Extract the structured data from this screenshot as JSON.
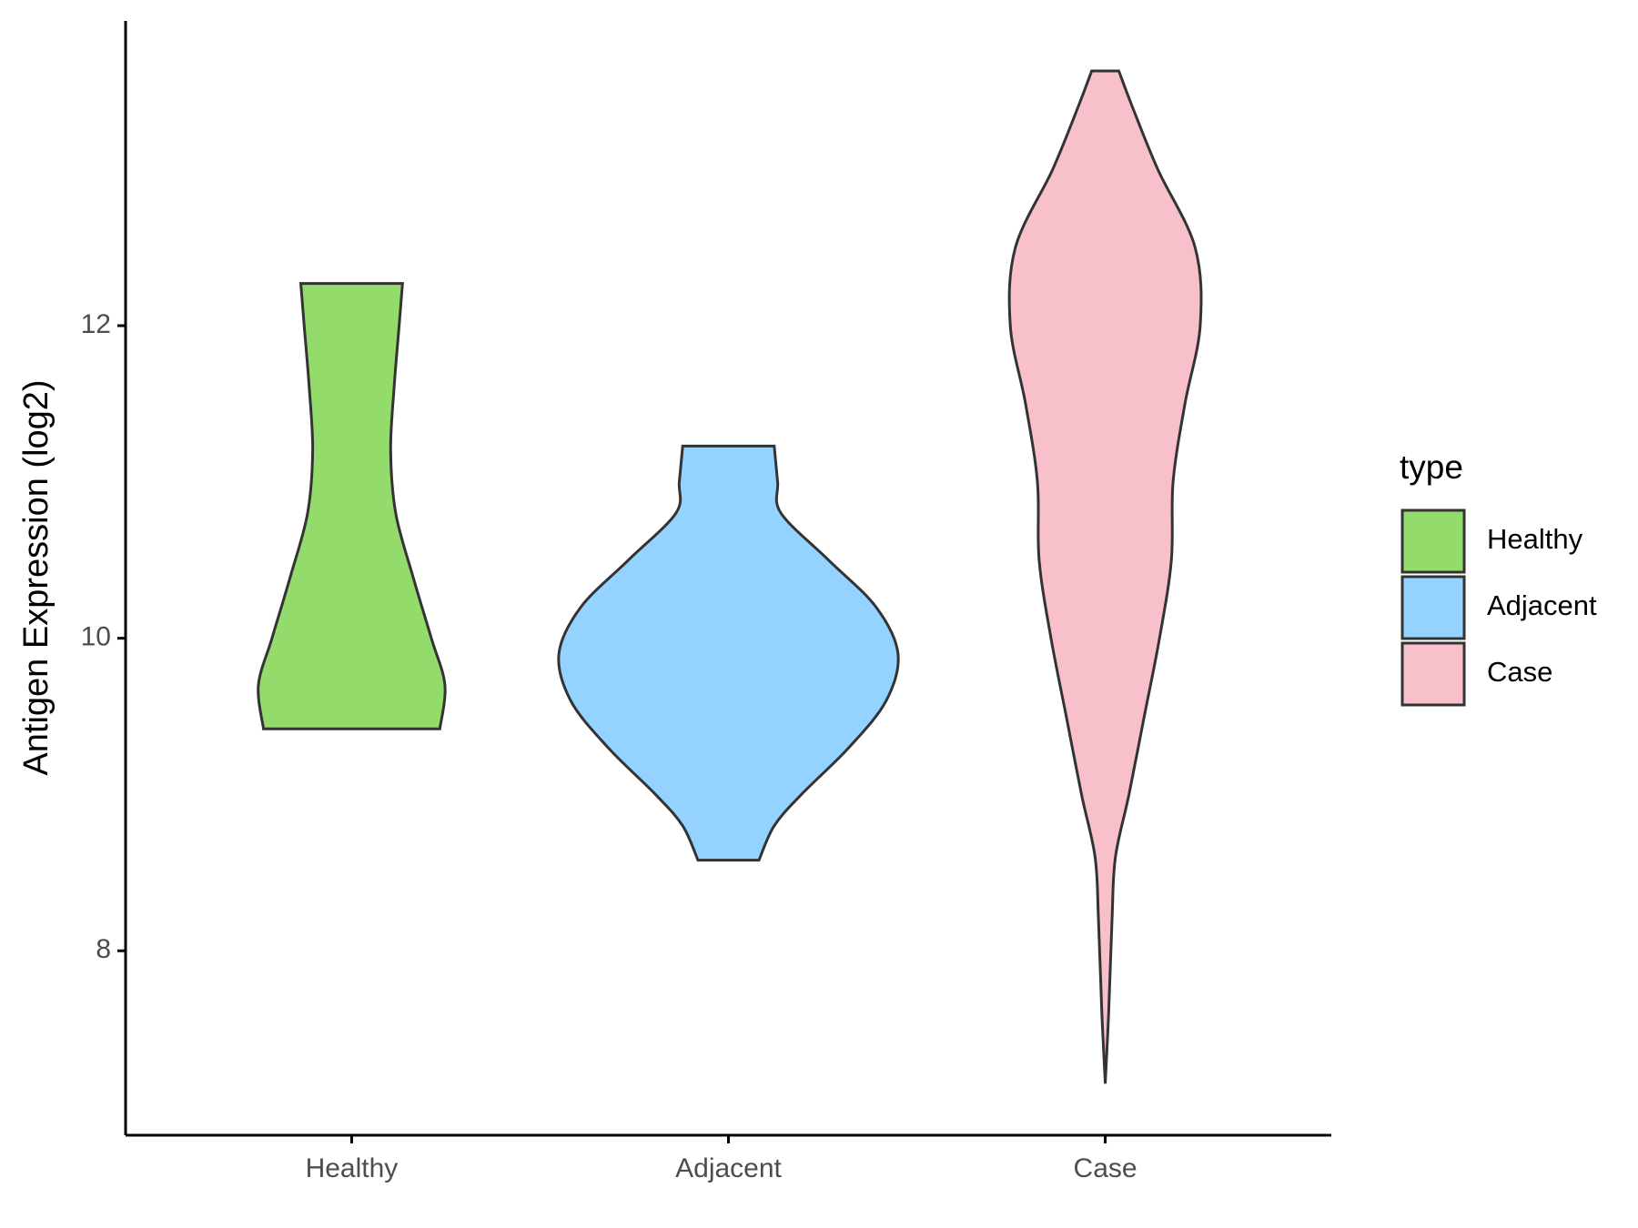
{
  "chart_data": {
    "type": "violin",
    "y_label": "Antigen Expression (log2)",
    "categories": [
      "Healthy",
      "Adjacent",
      "Case"
    ],
    "series": [
      {
        "name": "Healthy",
        "color": "#93db6a",
        "y": [
          9.42,
          9.7,
          10.0,
          10.4,
          10.8,
          11.2,
          11.6,
          12.0,
          12.27
        ],
        "density": [
          0.52,
          0.55,
          0.47,
          0.36,
          0.26,
          0.23,
          0.25,
          0.28,
          0.3
        ]
      },
      {
        "name": "Adjacent",
        "color": "#94d2ff",
        "y": [
          8.58,
          8.8,
          9.0,
          9.3,
          9.6,
          9.9,
          10.2,
          10.5,
          10.8,
          11.0,
          11.23
        ],
        "density": [
          0.18,
          0.27,
          0.43,
          0.71,
          0.93,
          1.0,
          0.87,
          0.59,
          0.31,
          0.29,
          0.27
        ]
      },
      {
        "name": "Case",
        "color": "#f7c0cb",
        "y": [
          7.15,
          7.6,
          8.2,
          8.6,
          9.0,
          9.5,
          10.0,
          10.5,
          11.0,
          11.5,
          12.0,
          12.5,
          13.0,
          13.4,
          13.63
        ],
        "density": [
          0.0,
          0.02,
          0.04,
          0.06,
          0.14,
          0.23,
          0.32,
          0.39,
          0.4,
          0.47,
          0.56,
          0.53,
          0.31,
          0.16,
          0.08
        ]
      }
    ],
    "ylim": [
      6.82,
      13.95
    ],
    "yticks": [
      8,
      10,
      12
    ],
    "legend_title": "type",
    "legend_position": "right",
    "grid": false
  }
}
